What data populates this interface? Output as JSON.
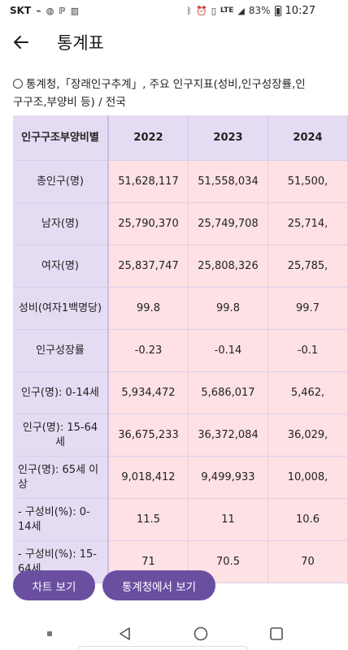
{
  "status_bar": {
    "carrier": "SKT",
    "lte": "LTE",
    "battery_percent": "83%",
    "time": "10:27",
    "icons": [
      "usb-icon",
      "wifi-call-icon",
      "p-icon",
      "chart-app-icon",
      "bluetooth-icon",
      "alarm-icon",
      "vibrate-icon",
      "lte-icon",
      "signal-icon",
      "battery-icon"
    ]
  },
  "app_bar": {
    "title": "통계표"
  },
  "source": {
    "text": "통계청,「장래인구추계」, 주요 인구지표(성비,인구성장률,인구구조,부양비 등) / 전국"
  },
  "table": {
    "header_label": "인구구조부양비별",
    "years": [
      "2022",
      "2023",
      "2024"
    ],
    "rows": [
      {
        "label": "총인구(명)",
        "values": [
          "51,628,117",
          "51,558,034",
          "51,500,"
        ]
      },
      {
        "label": "남자(명)",
        "values": [
          "25,790,370",
          "25,749,708",
          "25,714,"
        ]
      },
      {
        "label": "여자(명)",
        "values": [
          "25,837,747",
          "25,808,326",
          "25,785,"
        ]
      },
      {
        "label": "성비(여자1백명당)",
        "values": [
          "99.8",
          "99.8",
          "99.7"
        ]
      },
      {
        "label": "인구성장률",
        "values": [
          "-0.23",
          "-0.14",
          "-0.1"
        ]
      },
      {
        "label": "인구(명): 0-14세",
        "values": [
          "5,934,472",
          "5,686,017",
          "5,462,"
        ]
      },
      {
        "label": "인구(명): 15-64세",
        "values": [
          "36,675,233",
          "36,372,084",
          "36,029,"
        ]
      },
      {
        "label": "인구(명): 65세 이상",
        "values": [
          "9,018,412",
          "9,499,933",
          "10,008,"
        ]
      },
      {
        "label": "- 구성비(%): 0-14세",
        "values": [
          "11.5",
          "11",
          "10.6"
        ]
      },
      {
        "label": "- 구성비(%): 15-64세",
        "values": [
          "71",
          "70.5",
          "70"
        ]
      }
    ]
  },
  "buttons": {
    "chart": "차트 보기",
    "stats_site": "통계청에서 보기"
  },
  "colors": {
    "label_bg": "#e5dcf3",
    "value_bg": "#fde1e5",
    "button_bg": "#6a4fa1"
  }
}
